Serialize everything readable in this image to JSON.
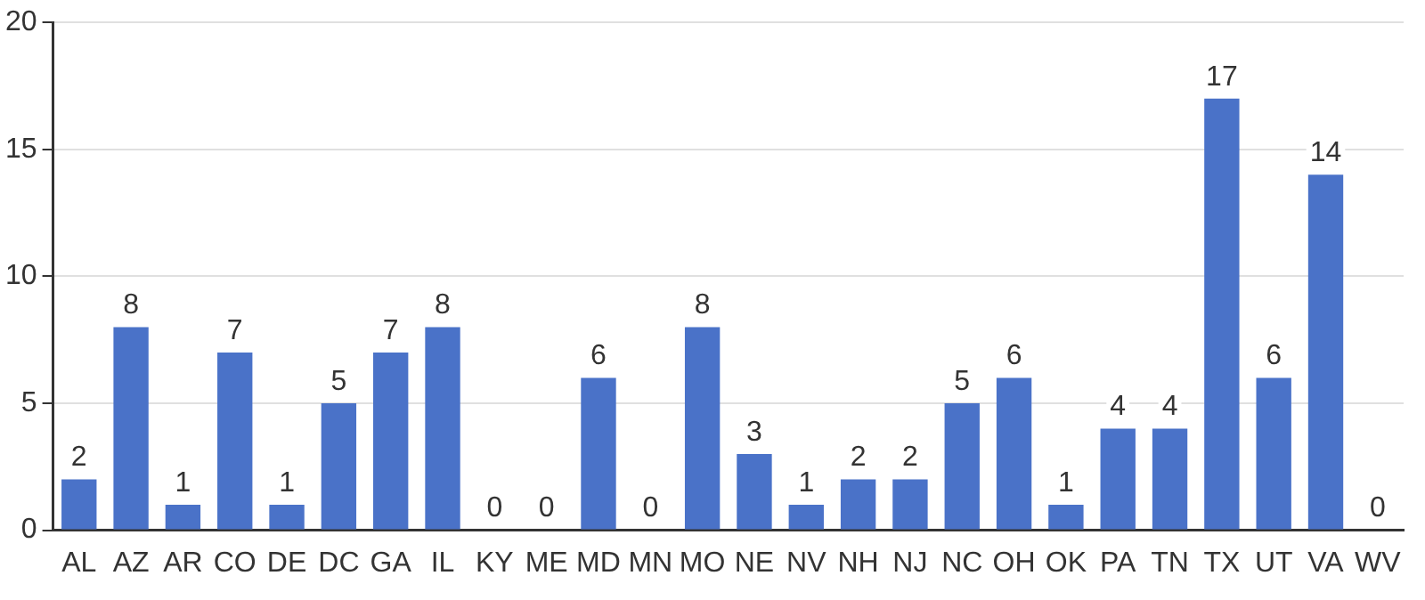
{
  "chart_data": {
    "type": "bar",
    "categories": [
      "AL",
      "AZ",
      "AR",
      "CO",
      "DE",
      "DC",
      "GA",
      "IL",
      "KY",
      "ME",
      "MD",
      "MN",
      "MO",
      "NE",
      "NV",
      "NH",
      "NJ",
      "NC",
      "OH",
      "OK",
      "PA",
      "TN",
      "TX",
      "UT",
      "VA",
      "WV"
    ],
    "values": [
      2,
      8,
      1,
      7,
      1,
      5,
      7,
      8,
      0,
      0,
      6,
      0,
      8,
      3,
      1,
      2,
      2,
      5,
      6,
      1,
      4,
      4,
      17,
      6,
      14,
      0
    ],
    "color": "#4a72c8",
    "ylim": [
      0,
      20
    ],
    "yticks": [
      0,
      5,
      10,
      15,
      20
    ],
    "grid": "y",
    "data_labels": true,
    "legend": false
  }
}
